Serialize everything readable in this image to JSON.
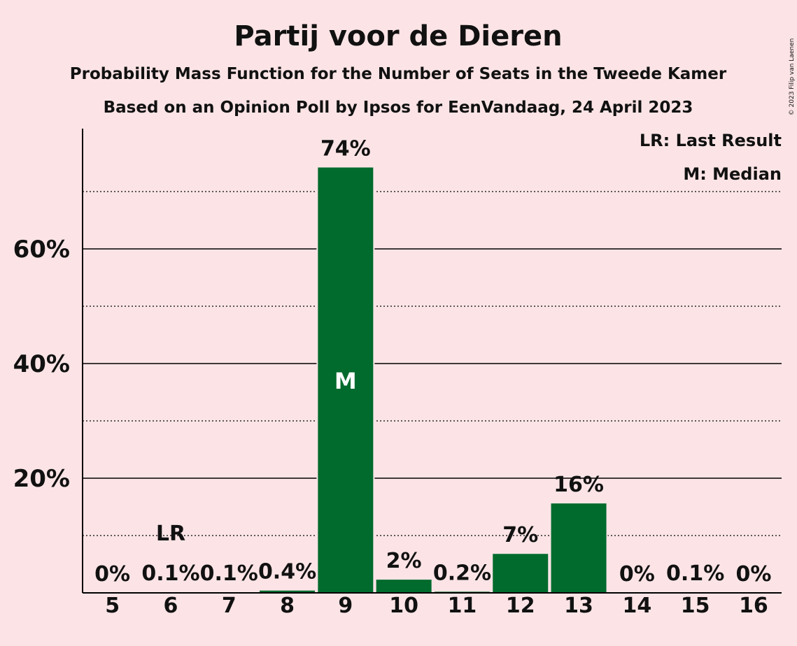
{
  "chart_data": {
    "type": "bar",
    "title": "Partij voor de Dieren",
    "subtitle": "Probability Mass Function for the Number of Seats in the Tweede Kamer",
    "subtitle2": "Based on an Opinion Poll by Ipsos for EenVandaag, 24 April 2023",
    "copyright": "© 2023 Filip van Laenen",
    "legend": [
      "LR: Last Result",
      "M: Median"
    ],
    "legend_position": "top-right",
    "categories": [
      "5",
      "6",
      "7",
      "8",
      "9",
      "10",
      "11",
      "12",
      "13",
      "14",
      "15",
      "16"
    ],
    "values": [
      0,
      0.1,
      0.1,
      0.4,
      74.2,
      2.3,
      0.2,
      6.8,
      15.6,
      0,
      0.1,
      0
    ],
    "value_labels": [
      "0%",
      "0.1%",
      "0.1%",
      "0.4%",
      "74%",
      "2%",
      "0.2%",
      "7%",
      "16%",
      "0%",
      "0.1%",
      "0%"
    ],
    "yticks": [
      20,
      40,
      60
    ],
    "ytick_labels": [
      "20%",
      "40%",
      "60%"
    ],
    "minor_gridlines": [
      10,
      30,
      50,
      70
    ],
    "ylim": [
      0,
      81
    ],
    "last_result": {
      "category": "6",
      "label": "LR"
    },
    "median": {
      "category": "9",
      "label": "M"
    },
    "bar_color": "#006b2d",
    "background": "#fce4e6"
  }
}
